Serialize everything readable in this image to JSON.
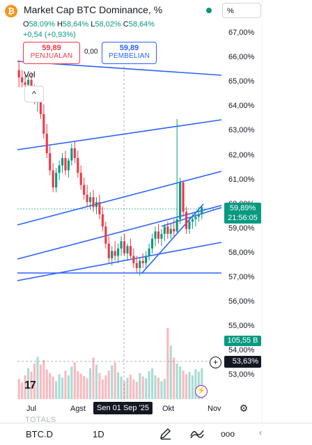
{
  "header": {
    "title": "Market Cap BTC Dominance, %",
    "logo_glyph": "₿",
    "scale_dropdown": "%",
    "ohlc": {
      "o_key": "O",
      "o_val": "58,09%",
      "h_key": "H",
      "h_val": "58,64%",
      "l_key": "L",
      "l_val": "58,02%",
      "c_key": "C",
      "c_val": "58,64%"
    },
    "change": "+0,54 (+0,93%)"
  },
  "trade": {
    "sell_price": "59,89",
    "sell_label": "PENJUALAN",
    "spread": "0,00",
    "buy_price": "59,89",
    "buy_label": "PEMBELIAN"
  },
  "volume_label": "Vol",
  "collapse_glyph": "^",
  "price_axis": {
    "labels": [
      "67,00%",
      "66,00%",
      "65,00%",
      "64,00%",
      "63,00%",
      "62,00%",
      "61,00%",
      "60,00%",
      "59,00%",
      "58,00%",
      "57,00%",
      "56,00%",
      "55,00%",
      "54,00%",
      "53,00%"
    ],
    "last_price": "59,89%",
    "countdown": "21:56:05",
    "volume_tag": "105,55 B",
    "crosshair_value": "53,63%"
  },
  "time_axis": {
    "labels": [
      "Jul",
      "Agst",
      "Okt",
      "Nov"
    ],
    "crosshair_date": "Sen 01 Sep '25"
  },
  "chart_data": {
    "type": "candlestick",
    "title": "Market Cap BTC Dominance, %",
    "ylabel": "%",
    "ylim": [
      52.7,
      67.5
    ],
    "x_ticks": [
      "Jul",
      "Agst",
      "Okt",
      "Nov"
    ],
    "last_close": 59.89,
    "candles": [
      {
        "o": 65.5,
        "h": 65.9,
        "l": 64.8,
        "c": 65.2
      },
      {
        "o": 65.2,
        "h": 65.5,
        "l": 64.8,
        "c": 65.0
      },
      {
        "o": 65.0,
        "h": 65.3,
        "l": 64.6,
        "c": 64.9
      },
      {
        "o": 64.9,
        "h": 65.3,
        "l": 64.5,
        "c": 65.1
      },
      {
        "o": 65.1,
        "h": 65.4,
        "l": 64.4,
        "c": 64.6
      },
      {
        "o": 64.6,
        "h": 64.9,
        "l": 64.1,
        "c": 64.3
      },
      {
        "o": 64.3,
        "h": 64.7,
        "l": 63.8,
        "c": 64.5
      },
      {
        "o": 64.5,
        "h": 64.8,
        "l": 63.5,
        "c": 63.7
      },
      {
        "o": 63.7,
        "h": 64.1,
        "l": 62.7,
        "c": 62.9
      },
      {
        "o": 62.9,
        "h": 63.3,
        "l": 61.9,
        "c": 62.1
      },
      {
        "o": 62.1,
        "h": 62.4,
        "l": 61.2,
        "c": 61.4
      },
      {
        "o": 61.4,
        "h": 61.7,
        "l": 60.5,
        "c": 60.7
      },
      {
        "o": 60.7,
        "h": 61.5,
        "l": 60.5,
        "c": 61.3
      },
      {
        "o": 61.3,
        "h": 61.8,
        "l": 61.0,
        "c": 61.6
      },
      {
        "o": 61.6,
        "h": 62.1,
        "l": 61.3,
        "c": 61.9
      },
      {
        "o": 61.9,
        "h": 62.2,
        "l": 61.2,
        "c": 61.4
      },
      {
        "o": 61.4,
        "h": 61.9,
        "l": 61.1,
        "c": 61.8
      },
      {
        "o": 61.8,
        "h": 62.5,
        "l": 61.6,
        "c": 62.3
      },
      {
        "o": 62.3,
        "h": 62.6,
        "l": 61.7,
        "c": 61.9
      },
      {
        "o": 61.9,
        "h": 62.2,
        "l": 61.1,
        "c": 61.3
      },
      {
        "o": 61.3,
        "h": 61.6,
        "l": 60.6,
        "c": 60.8
      },
      {
        "o": 60.8,
        "h": 61.1,
        "l": 60.2,
        "c": 60.4
      },
      {
        "o": 60.4,
        "h": 60.8,
        "l": 59.9,
        "c": 60.1
      },
      {
        "o": 60.1,
        "h": 60.5,
        "l": 59.8,
        "c": 60.3
      },
      {
        "o": 60.3,
        "h": 60.6,
        "l": 59.7,
        "c": 59.9
      },
      {
        "o": 59.9,
        "h": 60.3,
        "l": 59.6,
        "c": 60.1
      },
      {
        "o": 60.1,
        "h": 60.4,
        "l": 59.4,
        "c": 59.6
      },
      {
        "o": 59.6,
        "h": 59.9,
        "l": 58.9,
        "c": 59.1
      },
      {
        "o": 59.1,
        "h": 59.3,
        "l": 58.2,
        "c": 58.4
      },
      {
        "o": 58.4,
        "h": 58.7,
        "l": 57.6,
        "c": 57.8
      },
      {
        "o": 57.8,
        "h": 58.3,
        "l": 57.5,
        "c": 58.1
      },
      {
        "o": 58.1,
        "h": 58.5,
        "l": 57.7,
        "c": 57.9
      },
      {
        "o": 57.9,
        "h": 58.4,
        "l": 57.6,
        "c": 58.2
      },
      {
        "o": 58.2,
        "h": 58.7,
        "l": 57.9,
        "c": 58.5
      },
      {
        "o": 58.5,
        "h": 58.8,
        "l": 57.9,
        "c": 58.0
      },
      {
        "o": 58.0,
        "h": 58.4,
        "l": 57.7,
        "c": 58.3
      },
      {
        "o": 58.3,
        "h": 58.6,
        "l": 57.8,
        "c": 57.9
      },
      {
        "o": 57.9,
        "h": 58.2,
        "l": 57.4,
        "c": 57.6
      },
      {
        "o": 57.6,
        "h": 57.9,
        "l": 57.2,
        "c": 57.4
      },
      {
        "o": 57.4,
        "h": 57.8,
        "l": 57.1,
        "c": 57.7
      },
      {
        "o": 57.7,
        "h": 58.0,
        "l": 57.4,
        "c": 57.6
      },
      {
        "o": 57.6,
        "h": 58.1,
        "l": 57.4,
        "c": 57.9
      },
      {
        "o": 57.9,
        "h": 58.4,
        "l": 57.7,
        "c": 58.2
      },
      {
        "o": 58.2,
        "h": 58.8,
        "l": 58.0,
        "c": 58.6
      },
      {
        "o": 58.6,
        "h": 59.1,
        "l": 58.3,
        "c": 58.9
      },
      {
        "o": 58.9,
        "h": 59.2,
        "l": 58.4,
        "c": 58.6
      },
      {
        "o": 58.6,
        "h": 59.0,
        "l": 58.3,
        "c": 58.8
      },
      {
        "o": 58.8,
        "h": 59.2,
        "l": 58.5,
        "c": 59.1
      },
      {
        "o": 59.1,
        "h": 59.3,
        "l": 58.6,
        "c": 58.8
      },
      {
        "o": 58.8,
        "h": 59.2,
        "l": 58.6,
        "c": 59.0
      },
      {
        "o": 59.0,
        "h": 59.4,
        "l": 58.7,
        "c": 58.9
      },
      {
        "o": 58.9,
        "h": 63.5,
        "l": 58.8,
        "c": 59.4
      },
      {
        "o": 59.4,
        "h": 61.1,
        "l": 59.2,
        "c": 60.9
      },
      {
        "o": 60.9,
        "h": 61.0,
        "l": 59.5,
        "c": 59.7
      },
      {
        "o": 59.7,
        "h": 59.9,
        "l": 58.8,
        "c": 59.0
      },
      {
        "o": 59.0,
        "h": 59.5,
        "l": 58.8,
        "c": 59.3
      },
      {
        "o": 59.3,
        "h": 59.6,
        "l": 59.0,
        "c": 59.4
      },
      {
        "o": 59.4,
        "h": 59.7,
        "l": 59.1,
        "c": 59.5
      },
      {
        "o": 59.5,
        "h": 59.9,
        "l": 59.3,
        "c": 59.6
      },
      {
        "o": 59.6,
        "h": 59.95,
        "l": 59.4,
        "c": 59.89
      }
    ]
  },
  "toolbar": {
    "totals_label": "TOTALS",
    "symbol": "BTC.D",
    "interval": "1D",
    "more_label": "ooo"
  }
}
